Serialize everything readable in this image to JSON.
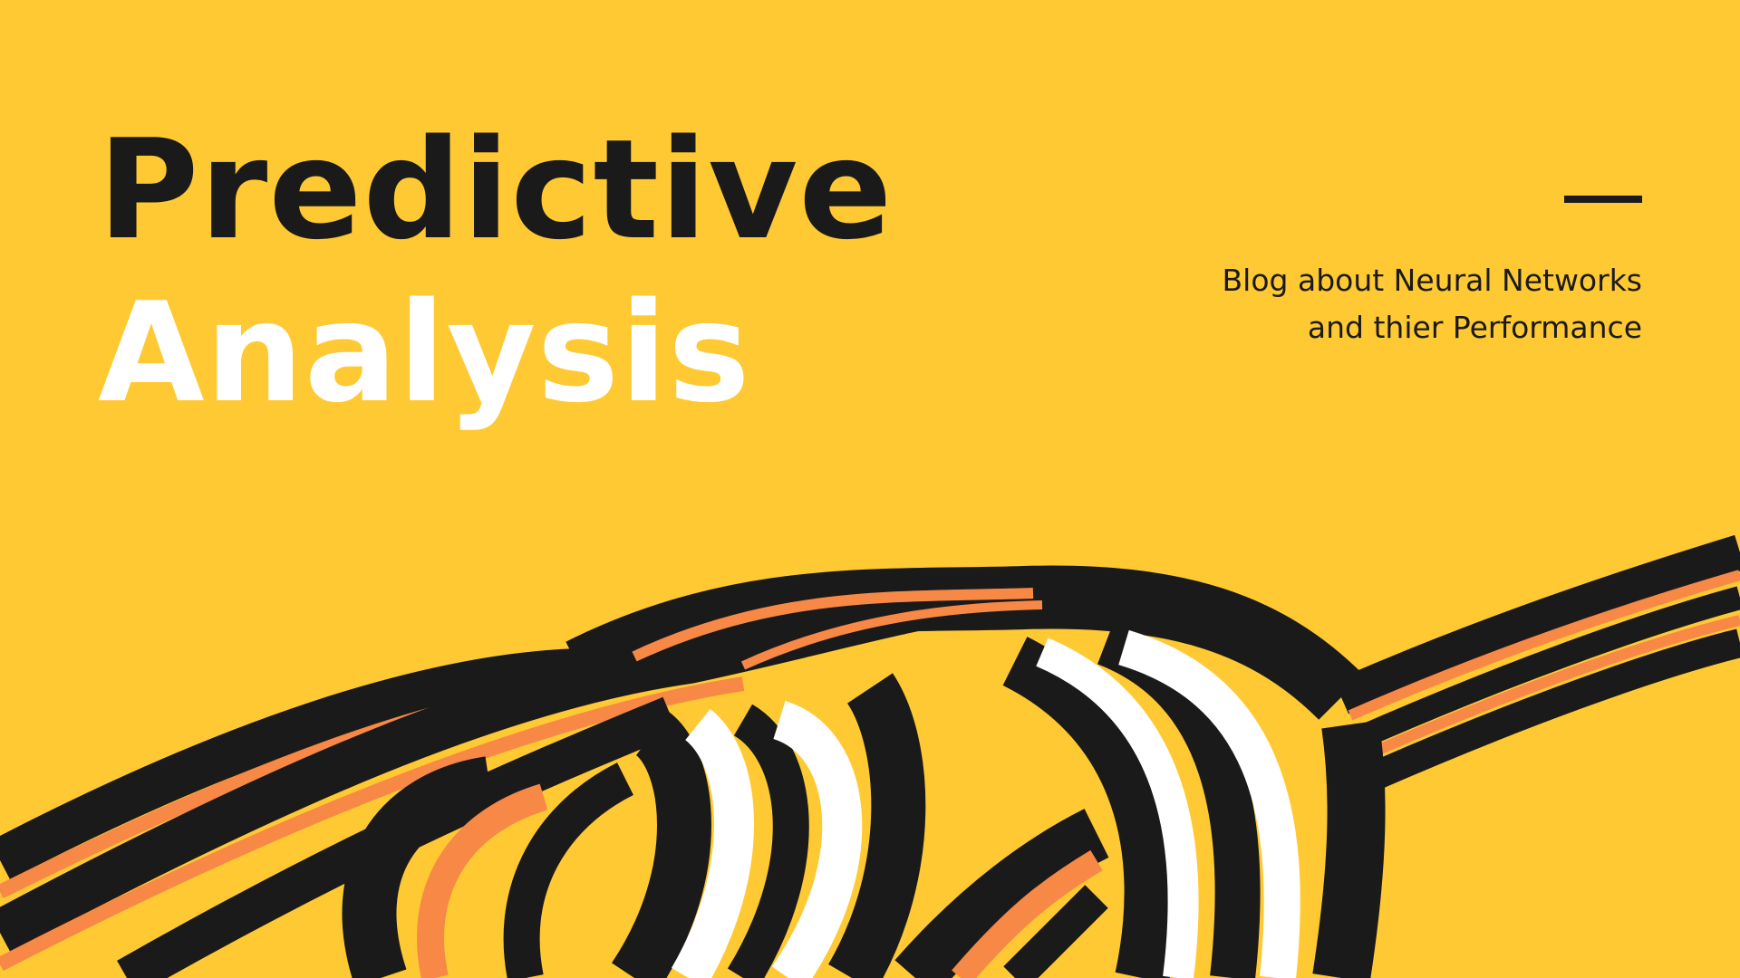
{
  "title": {
    "line1": "Predictive",
    "line2": "Analysis"
  },
  "subtitle": {
    "line1": "Blog about Neural Networks",
    "line2": "and thier Performance"
  },
  "colors": {
    "background": "#FFC933",
    "dark": "#1A1A1A",
    "orange": "#F78846",
    "white": "#FFFFFF"
  },
  "decoration": {
    "icon": "twisted-ribbon-illustration"
  }
}
